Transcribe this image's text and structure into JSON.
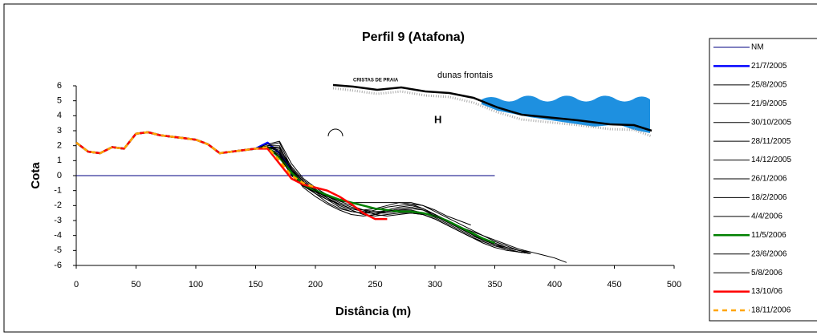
{
  "chart_data": {
    "type": "line",
    "title": "Perfil 9 (Atafona)",
    "x_label": "Distância (m)",
    "y_label": "Cota",
    "annotations": [
      "CRISTAS DE PRAIA",
      "dunas frontais",
      "H"
    ],
    "xlim": [
      0,
      500
    ],
    "xticks": [
      0,
      50,
      100,
      150,
      200,
      250,
      300,
      350,
      400,
      450,
      500
    ],
    "ylim": [
      -6,
      6
    ],
    "yticks": [
      -6,
      -5,
      -4,
      -3,
      -2,
      -1,
      0,
      1,
      2,
      3,
      4,
      5,
      6
    ],
    "grid": false,
    "legend": "right",
    "x": [
      0,
      10,
      20,
      30,
      40,
      50,
      60,
      70,
      80,
      90,
      100,
      110,
      120,
      130,
      140,
      150,
      160,
      170,
      180,
      190,
      200,
      210,
      220,
      230,
      240,
      250,
      260,
      270,
      280,
      290,
      300,
      310,
      320,
      330,
      340,
      350,
      360,
      370,
      380,
      390,
      400,
      410
    ],
    "series": [
      {
        "name": "NM",
        "color": "#000080",
        "line_width": 1,
        "values": [
          0,
          0,
          0,
          0,
          0,
          0,
          0,
          0,
          0,
          0,
          0,
          0,
          0,
          0,
          0,
          0,
          0,
          0,
          0,
          0,
          0,
          0,
          0,
          0,
          0,
          0,
          0,
          0,
          0,
          0,
          0,
          0,
          0,
          0,
          0,
          0,
          null,
          null,
          null,
          null,
          null,
          null
        ]
      },
      {
        "name": "21/7/2005",
        "color": "#0000ff",
        "line_width": 2.5,
        "values": [
          2.2,
          1.6,
          1.5,
          1.9,
          1.8,
          2.8,
          2.9,
          2.7,
          2.6,
          2.5,
          2.4,
          2.1,
          1.5,
          1.6,
          1.7,
          1.8,
          2.2,
          1.5,
          0.3,
          -0.6,
          -1.0,
          null,
          null,
          null,
          null,
          null,
          null,
          null,
          null,
          null,
          null,
          null,
          null,
          null,
          null,
          null,
          null,
          null,
          null,
          null,
          null,
          null
        ]
      },
      {
        "name": "25/8/2005",
        "color": "#000000",
        "line_width": 1,
        "values": [
          2.2,
          1.6,
          1.5,
          1.9,
          1.8,
          2.8,
          2.9,
          2.7,
          2.6,
          2.5,
          2.4,
          2.1,
          1.5,
          1.6,
          1.7,
          1.8,
          2.0,
          2.2,
          0.5,
          -0.4,
          -1.0,
          -1.5,
          -2.0,
          -2.3,
          -2.6,
          -2.7,
          -2.6,
          -2.5,
          -2.5,
          -2.6,
          -2.9,
          -3.3,
          -3.7,
          -4.1,
          -4.4,
          -4.7,
          -4.9,
          -5.1,
          -5.2,
          null,
          null,
          null
        ]
      },
      {
        "name": "21/9/2005",
        "color": "#000000",
        "line_width": 1,
        "values": [
          2.2,
          1.6,
          1.5,
          1.9,
          1.8,
          2.8,
          2.9,
          2.7,
          2.6,
          2.5,
          2.4,
          2.1,
          1.5,
          1.6,
          1.7,
          1.8,
          2.1,
          2.3,
          0.8,
          -0.2,
          -0.8,
          -1.3,
          -1.7,
          -1.8,
          -1.8,
          -1.8,
          -1.8,
          -1.8,
          -1.9,
          -2.2,
          -2.6,
          -3.0,
          -3.4,
          -3.7,
          -4.0,
          -4.3,
          -4.6,
          -4.9,
          -5.1,
          -5.3,
          -5.5,
          -5.8
        ]
      },
      {
        "name": "30/10/2005",
        "color": "#000000",
        "line_width": 1,
        "values": [
          2.2,
          1.6,
          1.5,
          1.9,
          1.8,
          2.8,
          2.9,
          2.7,
          2.6,
          2.5,
          2.4,
          2.1,
          1.5,
          1.6,
          1.7,
          1.8,
          1.9,
          1.9,
          0.4,
          -0.6,
          -1.2,
          -1.8,
          -2.2,
          -2.4,
          -2.5,
          -2.3,
          -2.1,
          -2.0,
          -1.9,
          -2.0,
          -2.3,
          -2.7,
          -3.0,
          -3.3,
          null,
          null,
          null,
          null,
          null,
          null,
          null,
          null
        ]
      },
      {
        "name": "28/11/2005",
        "color": "#000000",
        "line_width": 1,
        "values": [
          2.2,
          1.6,
          1.5,
          1.9,
          1.8,
          2.8,
          2.9,
          2.7,
          2.6,
          2.5,
          2.4,
          2.1,
          1.5,
          1.6,
          1.7,
          1.8,
          1.9,
          1.6,
          0.2,
          -0.8,
          -1.4,
          -1.9,
          -2.3,
          -2.6,
          -2.7,
          -2.6,
          -2.4,
          -2.3,
          -2.3,
          -2.5,
          -2.8,
          -3.2,
          -3.6,
          -4.0,
          -4.3,
          -4.6,
          -4.8,
          -5.0,
          -5.2,
          null,
          null,
          null
        ]
      },
      {
        "name": "14/12/2005",
        "color": "#000000",
        "line_width": 1,
        "values": [
          2.2,
          1.6,
          1.5,
          1.9,
          1.8,
          2.8,
          2.9,
          2.7,
          2.6,
          2.5,
          2.4,
          2.1,
          1.5,
          1.6,
          1.7,
          1.8,
          1.8,
          1.4,
          0.0,
          -0.7,
          -1.2,
          -1.6,
          -1.9,
          -2.2,
          -2.3,
          -2.2,
          -2.0,
          -1.8,
          -1.8,
          -2.0,
          -2.4,
          -2.8,
          -3.2,
          -3.6,
          -4.0,
          -4.4,
          -4.7,
          -5.0,
          -5.2,
          null,
          null,
          null
        ]
      },
      {
        "name": "26/1/2006",
        "color": "#000000",
        "line_width": 1,
        "values": [
          2.2,
          1.6,
          1.5,
          1.9,
          1.8,
          2.8,
          2.9,
          2.7,
          2.6,
          2.5,
          2.4,
          2.1,
          1.5,
          1.6,
          1.7,
          1.8,
          1.9,
          1.8,
          0.6,
          -0.3,
          -0.9,
          -1.4,
          -1.8,
          -2.1,
          -2.3,
          -2.4,
          -2.4,
          -2.3,
          -2.2,
          -2.3,
          -2.6,
          -3.0,
          -3.4,
          -3.8,
          -4.2,
          -4.5,
          -4.8,
          -5.0,
          -5.1,
          null,
          null,
          null
        ]
      },
      {
        "name": "18/2/2006",
        "color": "#000000",
        "line_width": 1,
        "values": [
          2.2,
          1.6,
          1.5,
          1.9,
          1.8,
          2.8,
          2.9,
          2.7,
          2.6,
          2.5,
          2.4,
          2.1,
          1.5,
          1.6,
          1.7,
          1.8,
          2.0,
          2.0,
          0.3,
          -0.5,
          -1.1,
          -1.6,
          -2.1,
          -2.4,
          -2.5,
          -2.5,
          -2.3,
          -2.1,
          -2.0,
          -2.2,
          -2.6,
          -3.0,
          -3.5,
          -3.9,
          -4.3,
          -4.6,
          -4.9,
          -5.1,
          -5.2,
          null,
          null,
          null
        ]
      },
      {
        "name": "4/4/2006",
        "color": "#000000",
        "line_width": 1,
        "values": [
          2.2,
          1.6,
          1.5,
          1.9,
          1.8,
          2.8,
          2.9,
          2.7,
          2.6,
          2.5,
          2.4,
          2.1,
          1.5,
          1.6,
          1.7,
          1.8,
          1.8,
          1.5,
          0.1,
          -0.6,
          -1.0,
          -1.5,
          -1.9,
          -2.2,
          -2.4,
          -2.5,
          -2.5,
          -2.4,
          -2.4,
          -2.6,
          -2.9,
          -3.3,
          -3.7,
          -4.1,
          -4.4,
          -4.7,
          -4.9,
          -5.1,
          -5.2,
          null,
          null,
          null
        ]
      },
      {
        "name": "11/5/2006",
        "color": "#008000",
        "line_width": 2.5,
        "values": [
          2.2,
          1.6,
          1.5,
          1.9,
          1.8,
          2.8,
          2.9,
          2.7,
          2.6,
          2.5,
          2.4,
          2.1,
          1.5,
          1.6,
          1.7,
          1.8,
          1.9,
          1.2,
          0.2,
          -0.6,
          -1.0,
          -1.3,
          -1.6,
          -1.8,
          -2.0,
          -2.2,
          -2.3,
          -2.4,
          -2.4,
          -2.5,
          -2.7,
          -3.0,
          -3.4,
          -3.8,
          -4.2,
          -4.5,
          null,
          null,
          null,
          null,
          null,
          null
        ]
      },
      {
        "name": "23/6/2006",
        "color": "#000000",
        "line_width": 1,
        "values": [
          2.2,
          1.6,
          1.5,
          1.9,
          1.8,
          2.8,
          2.9,
          2.7,
          2.6,
          2.5,
          2.4,
          2.1,
          1.5,
          1.6,
          1.7,
          1.8,
          1.9,
          1.7,
          0.4,
          -0.4,
          -1.0,
          -1.5,
          -1.9,
          -2.2,
          -2.4,
          -2.5,
          -2.4,
          -2.2,
          -2.1,
          -2.3,
          -2.7,
          -3.1,
          -3.5,
          -3.9,
          -4.3,
          -4.6,
          -4.9,
          -5.1,
          -5.2,
          null,
          null,
          null
        ]
      },
      {
        "name": "5/8/2006",
        "color": "#000000",
        "line_width": 1,
        "values": [
          2.2,
          1.6,
          1.5,
          1.9,
          1.8,
          2.8,
          2.9,
          2.7,
          2.6,
          2.5,
          2.4,
          2.1,
          1.5,
          1.6,
          1.7,
          1.8,
          1.8,
          1.3,
          0.0,
          -0.7,
          -1.1,
          -1.4,
          -1.7,
          -2.0,
          -2.3,
          -2.6,
          -2.7,
          -2.6,
          -2.5,
          -2.6,
          -2.9,
          -3.3,
          -3.7,
          -4.1,
          -4.5,
          -4.8,
          -5.0,
          -5.1,
          -5.2,
          null,
          null,
          null
        ]
      },
      {
        "name": "13/10/06",
        "color": "#ff0000",
        "line_width": 2.5,
        "values": [
          2.2,
          1.6,
          1.5,
          1.9,
          1.8,
          2.8,
          2.9,
          2.7,
          2.6,
          2.5,
          2.4,
          2.1,
          1.5,
          1.6,
          1.7,
          1.8,
          1.8,
          0.8,
          -0.2,
          -0.6,
          -0.8,
          -1.0,
          -1.4,
          -1.9,
          -2.5,
          -2.9,
          -2.9,
          null,
          null,
          null,
          null,
          null,
          null,
          null,
          null,
          null,
          null,
          null,
          null,
          null,
          null,
          null
        ]
      },
      {
        "name": "18/11/2006",
        "color": "#ffa500",
        "line_width": 2.5,
        "dash": true,
        "values": [
          2.2,
          1.6,
          1.5,
          1.9,
          1.8,
          2.8,
          2.9,
          2.7,
          2.6,
          2.5,
          2.4,
          2.1,
          1.5,
          1.6,
          1.7,
          1.8,
          1.9,
          1.0,
          0.0,
          -0.5,
          -0.8,
          null,
          null,
          null,
          null,
          null,
          null,
          null,
          null,
          null,
          null,
          null,
          null,
          null,
          null,
          null,
          null,
          null,
          null,
          null,
          null,
          null
        ]
      }
    ]
  }
}
